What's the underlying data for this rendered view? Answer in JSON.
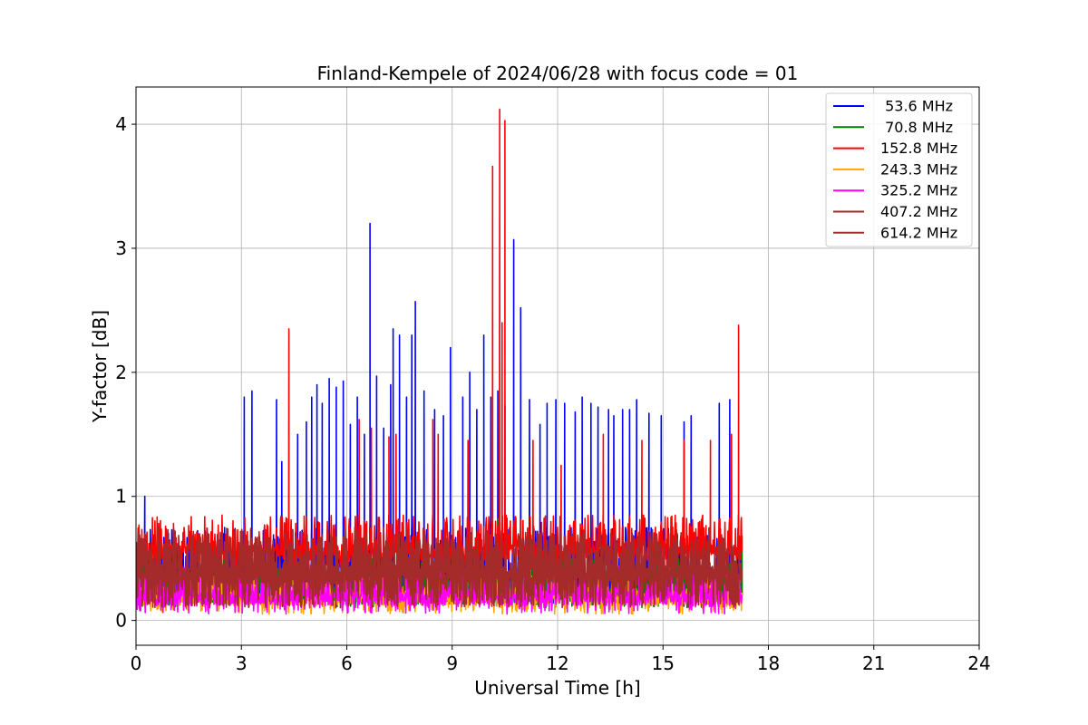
{
  "chart_data": {
    "type": "line",
    "title": "Finland-Kempele of 2024/06/28 with focus code = 01",
    "xlabel": "Universal Time [h]",
    "ylabel": "Y-factor [dB]",
    "xlim": [
      0,
      24
    ],
    "ylim": [
      -0.2,
      4.3
    ],
    "x_ticks": [
      "0",
      "3",
      "6",
      "9",
      "12",
      "15",
      "18",
      "21",
      "24"
    ],
    "y_ticks": [
      "0",
      "1",
      "2",
      "3",
      "4"
    ],
    "grid": true,
    "legend_position": "top-right",
    "series": [
      {
        "name": " 53.6 MHz",
        "color": "#0000ff",
        "base": 0.2,
        "band": [
          0.15,
          0.75
        ],
        "spikes": [
          [
            0.25,
            1.0
          ],
          [
            3.08,
            1.8
          ],
          [
            3.3,
            1.85
          ],
          [
            4.0,
            1.78
          ],
          [
            4.15,
            1.28
          ],
          [
            4.6,
            1.5
          ],
          [
            4.85,
            1.6
          ],
          [
            5.0,
            1.8
          ],
          [
            5.15,
            1.9
          ],
          [
            5.3,
            1.75
          ],
          [
            5.5,
            1.95
          ],
          [
            5.7,
            1.88
          ],
          [
            5.9,
            1.93
          ],
          [
            6.1,
            1.58
          ],
          [
            6.3,
            1.8
          ],
          [
            6.5,
            1.5
          ],
          [
            6.66,
            3.2
          ],
          [
            6.85,
            1.97
          ],
          [
            7.05,
            1.55
          ],
          [
            7.25,
            1.9
          ],
          [
            7.32,
            2.35
          ],
          [
            7.5,
            2.3
          ],
          [
            7.7,
            1.8
          ],
          [
            7.85,
            2.3
          ],
          [
            7.95,
            2.57
          ],
          [
            8.2,
            1.85
          ],
          [
            8.5,
            1.7
          ],
          [
            8.75,
            1.65
          ],
          [
            8.95,
            2.2
          ],
          [
            9.3,
            1.8
          ],
          [
            9.5,
            2.0
          ],
          [
            9.7,
            1.7
          ],
          [
            9.9,
            2.3
          ],
          [
            10.1,
            1.8
          ],
          [
            10.3,
            1.85
          ],
          [
            10.5,
            1.73
          ],
          [
            10.75,
            3.07
          ],
          [
            10.95,
            2.52
          ],
          [
            11.2,
            1.78
          ],
          [
            11.5,
            1.58
          ],
          [
            11.7,
            1.75
          ],
          [
            11.95,
            1.78
          ],
          [
            12.2,
            1.75
          ],
          [
            12.5,
            1.68
          ],
          [
            12.7,
            1.8
          ],
          [
            12.95,
            1.75
          ],
          [
            13.15,
            1.72
          ],
          [
            13.45,
            1.7
          ],
          [
            13.6,
            1.65
          ],
          [
            13.85,
            1.7
          ],
          [
            14.05,
            1.7
          ],
          [
            14.25,
            1.78
          ],
          [
            14.6,
            1.67
          ],
          [
            14.95,
            1.65
          ],
          [
            15.6,
            1.6
          ],
          [
            15.8,
            1.65
          ],
          [
            16.6,
            1.75
          ],
          [
            16.9,
            1.78
          ]
        ]
      },
      {
        "name": " 70.8 MHz",
        "color": "#008000",
        "base": 0.2,
        "band": [
          0.1,
          0.5
        ],
        "spikes": [
          [
            10.3,
            0.82
          ],
          [
            17.25,
            0.68
          ]
        ]
      },
      {
        "name": "152.8 MHz",
        "color": "#ff0000",
        "base": 0.55,
        "band": [
          0.4,
          0.85
        ],
        "spikes": [
          [
            4.35,
            2.35
          ],
          [
            6.35,
            1.62
          ],
          [
            6.7,
            1.55
          ],
          [
            7.2,
            1.48
          ],
          [
            7.4,
            1.5
          ],
          [
            8.45,
            1.62
          ],
          [
            8.6,
            1.5
          ],
          [
            9.45,
            1.45
          ],
          [
            10.15,
            3.66
          ],
          [
            10.35,
            4.12
          ],
          [
            10.5,
            4.03
          ],
          [
            10.42,
            2.4
          ],
          [
            11.3,
            1.45
          ],
          [
            12.1,
            1.25
          ],
          [
            13.3,
            1.5
          ],
          [
            14.4,
            1.45
          ],
          [
            15.6,
            1.45
          ],
          [
            16.35,
            1.45
          ],
          [
            16.95,
            1.5
          ],
          [
            17.15,
            2.38
          ]
        ]
      },
      {
        "name": "243.3 MHz",
        "color": "#ffa500",
        "base": 0.18,
        "band": [
          0.05,
          0.4
        ],
        "spikes": []
      },
      {
        "name": "325.2 MHz",
        "color": "#ff00ff",
        "base": 0.18,
        "band": [
          0.05,
          0.45
        ],
        "spikes": []
      },
      {
        "name": "407.2 MHz",
        "color": "#a52a2a",
        "base": 0.35,
        "band": [
          0.1,
          0.7
        ],
        "spikes": []
      },
      {
        "name": "614.2 MHz",
        "color": "#a52a2a",
        "base": 0.4,
        "band": [
          0.1,
          0.75
        ],
        "spikes": []
      }
    ],
    "data_end_x": 17.25
  }
}
